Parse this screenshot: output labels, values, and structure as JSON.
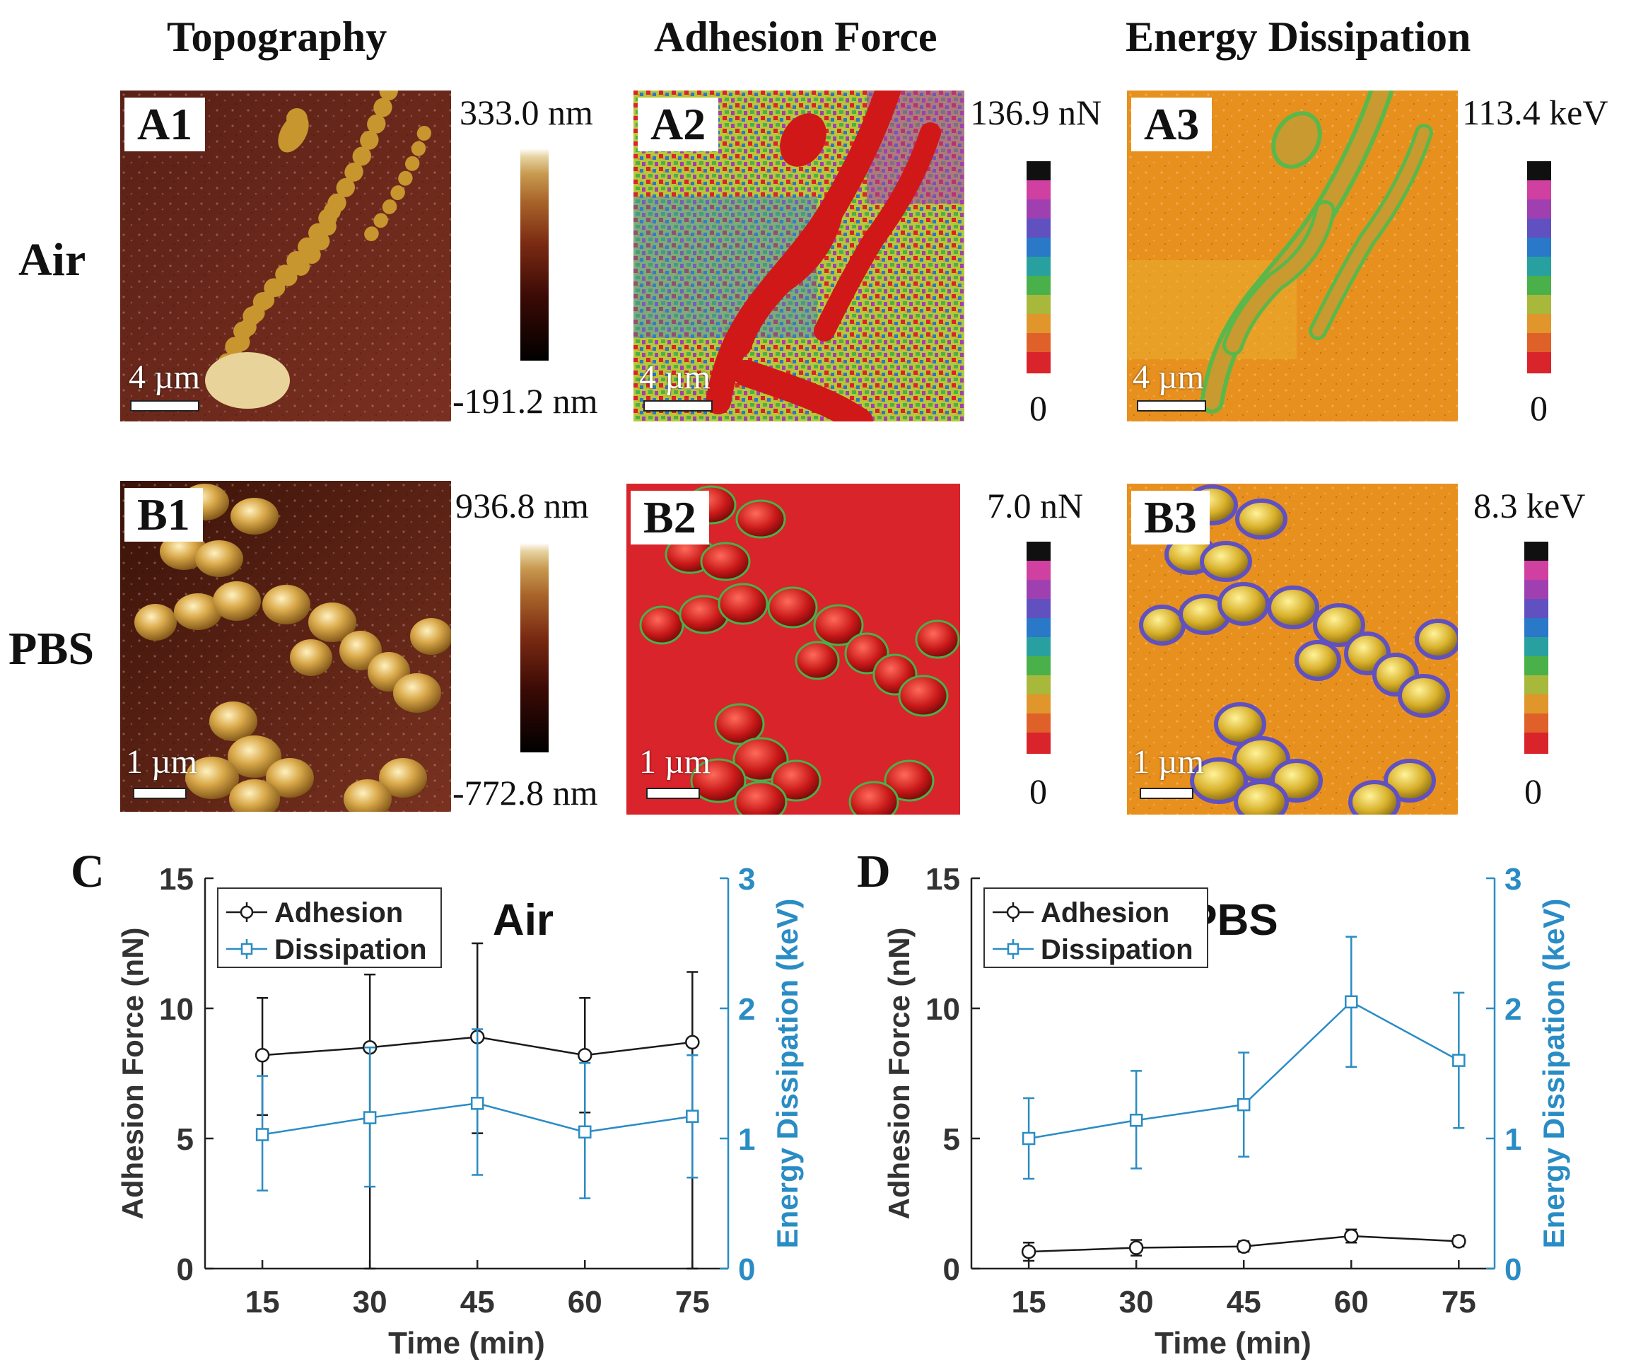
{
  "columns": [
    "Topography",
    "Adhesion Force",
    "Energy Dissipation"
  ],
  "rows": [
    "Air",
    "PBS"
  ],
  "panels": {
    "A1": {
      "label": "A1",
      "scale": "4 µm",
      "cb_max": "333.0 nm",
      "cb_min": "-191.2 nm"
    },
    "A2": {
      "label": "A2",
      "scale": "4 µm",
      "cb_max": "136.9 nN",
      "cb_min": "0"
    },
    "A3": {
      "label": "A3",
      "scale": "4 µm",
      "cb_max": "113.4 keV",
      "cb_min": "0"
    },
    "B1": {
      "label": "B1",
      "scale": "1 µm",
      "cb_max": "936.8 nm",
      "cb_min": "-772.8 nm"
    },
    "B2": {
      "label": "B2",
      "scale": "1 µm",
      "cb_max": "7.0 nN",
      "cb_min": "0"
    },
    "B3": {
      "label": "B3",
      "scale": "1 µm",
      "cb_max": "8.3 keV",
      "cb_min": "0"
    }
  },
  "colors": {
    "adhesion": "#1a1a1a",
    "dissipation": "#2a8cc4",
    "topo_bg": "#6b2a1a",
    "adhesion_map_bg": "#d8242a",
    "dissipation_map_bg": "#e88a1c",
    "rainbow": [
      "#d8242a",
      "#e0602a",
      "#e0962a",
      "#a8b83a",
      "#4ab04a",
      "#28a0a0",
      "#2a78c8",
      "#6050c0",
      "#a040b0",
      "#d040a0",
      "#101010"
    ],
    "topo_bar": [
      "#000000",
      "#3a0a05",
      "#7a2a12",
      "#a8642a",
      "#c89a50",
      "#e6d2a0",
      "#ffffff"
    ]
  },
  "chart_data": [
    {
      "type": "line",
      "panel": "C",
      "title": "Air",
      "xlabel": "Time (min)",
      "ylabel": "Adhesion Force (nN)",
      "y2label": "Energy Dissipation (keV)",
      "x": [
        15,
        30,
        45,
        60,
        75
      ],
      "xticks": [
        "15",
        "30",
        "45",
        "60",
        "75"
      ],
      "xlim": [
        7,
        80
      ],
      "ylim": [
        0,
        15
      ],
      "yticks": [
        "0",
        "5",
        "10",
        "15"
      ],
      "y2lim": [
        0,
        3
      ],
      "y2ticks": [
        "0",
        "1",
        "2",
        "3"
      ],
      "legend_position": "top-left",
      "series": [
        {
          "name": "Adhesion",
          "axis": "left",
          "marker": "circle",
          "values": [
            8.2,
            8.5,
            8.9,
            8.2,
            8.7
          ],
          "err_low": [
            5.9,
            0,
            5.2,
            6.0,
            0
          ],
          "err_high": [
            10.4,
            11.3,
            12.5,
            10.4,
            11.4
          ]
        },
        {
          "name": "Dissipation",
          "axis": "right",
          "marker": "square",
          "values": [
            1.03,
            1.16,
            1.27,
            1.05,
            1.17
          ],
          "err_low": [
            0.6,
            0.63,
            0.72,
            0.54,
            0.7
          ],
          "err_high": [
            1.48,
            1.7,
            1.84,
            1.58,
            1.64
          ]
        }
      ]
    },
    {
      "type": "line",
      "panel": "D",
      "title": "PBS",
      "xlabel": "Time (min)",
      "ylabel": "Adhesion Force (nN)",
      "y2label": "Energy Dissipation (keV)",
      "x": [
        15,
        30,
        45,
        60,
        75
      ],
      "xticks": [
        "15",
        "30",
        "45",
        "60",
        "75"
      ],
      "xlim": [
        7,
        80
      ],
      "ylim": [
        0,
        15
      ],
      "yticks": [
        "0",
        "5",
        "10",
        "15"
      ],
      "y2lim": [
        0,
        3
      ],
      "y2ticks": [
        "0",
        "1",
        "2",
        "3"
      ],
      "legend_position": "top-left",
      "series": [
        {
          "name": "Adhesion",
          "axis": "left",
          "marker": "circle",
          "values": [
            0.65,
            0.8,
            0.85,
            1.25,
            1.05
          ],
          "err_low": [
            0.3,
            0.5,
            0.65,
            1.0,
            0.85
          ],
          "err_high": [
            1.0,
            1.1,
            1.05,
            1.5,
            1.25
          ]
        },
        {
          "name": "Dissipation",
          "axis": "right",
          "marker": "square",
          "values": [
            1.0,
            1.14,
            1.26,
            2.05,
            1.6
          ],
          "err_low": [
            0.69,
            0.77,
            0.86,
            1.55,
            1.08
          ],
          "err_high": [
            1.31,
            1.52,
            1.66,
            2.55,
            2.12
          ]
        }
      ]
    }
  ]
}
